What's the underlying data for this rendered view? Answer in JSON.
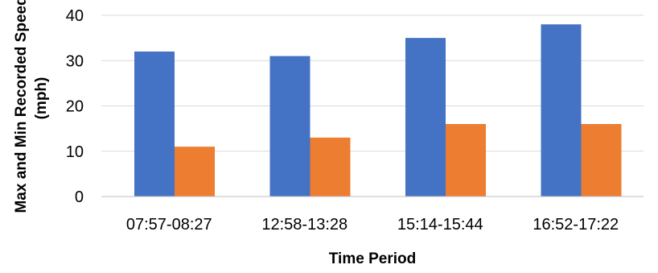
{
  "chart_data": {
    "type": "bar",
    "title": "",
    "categories": [
      "07:57-08:27",
      "12:58-13:28",
      "15:14-15:44",
      "16:52-17:22"
    ],
    "series": [
      {
        "values": [
          32,
          31,
          35,
          38
        ],
        "color": "#4472C4"
      },
      {
        "values": [
          11,
          13,
          16,
          16
        ],
        "color": "#ED7D31"
      }
    ],
    "xlabel": "Time Period",
    "ylabel_line1": "Max and Min Recorded Speeds",
    "ylabel_line2": "(mph)",
    "ylim": [
      0,
      40
    ],
    "yticks": [
      "0",
      "10",
      "20",
      "30",
      "40"
    ],
    "grid": true,
    "legend": "none"
  }
}
